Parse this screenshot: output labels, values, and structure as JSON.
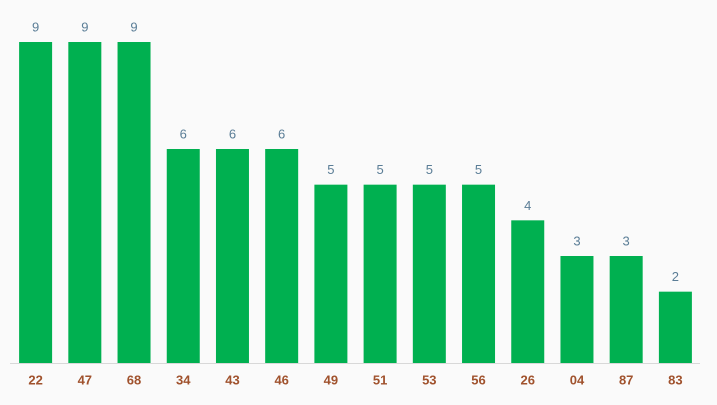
{
  "chart_data": {
    "type": "bar",
    "categories": [
      "22",
      "47",
      "68",
      "34",
      "43",
      "46",
      "49",
      "51",
      "53",
      "56",
      "26",
      "04",
      "87",
      "83"
    ],
    "values": [
      9,
      9,
      9,
      6,
      6,
      6,
      5,
      5,
      5,
      5,
      4,
      3,
      3,
      2
    ],
    "color": "#00b050",
    "ylim": [
      0,
      9
    ]
  }
}
